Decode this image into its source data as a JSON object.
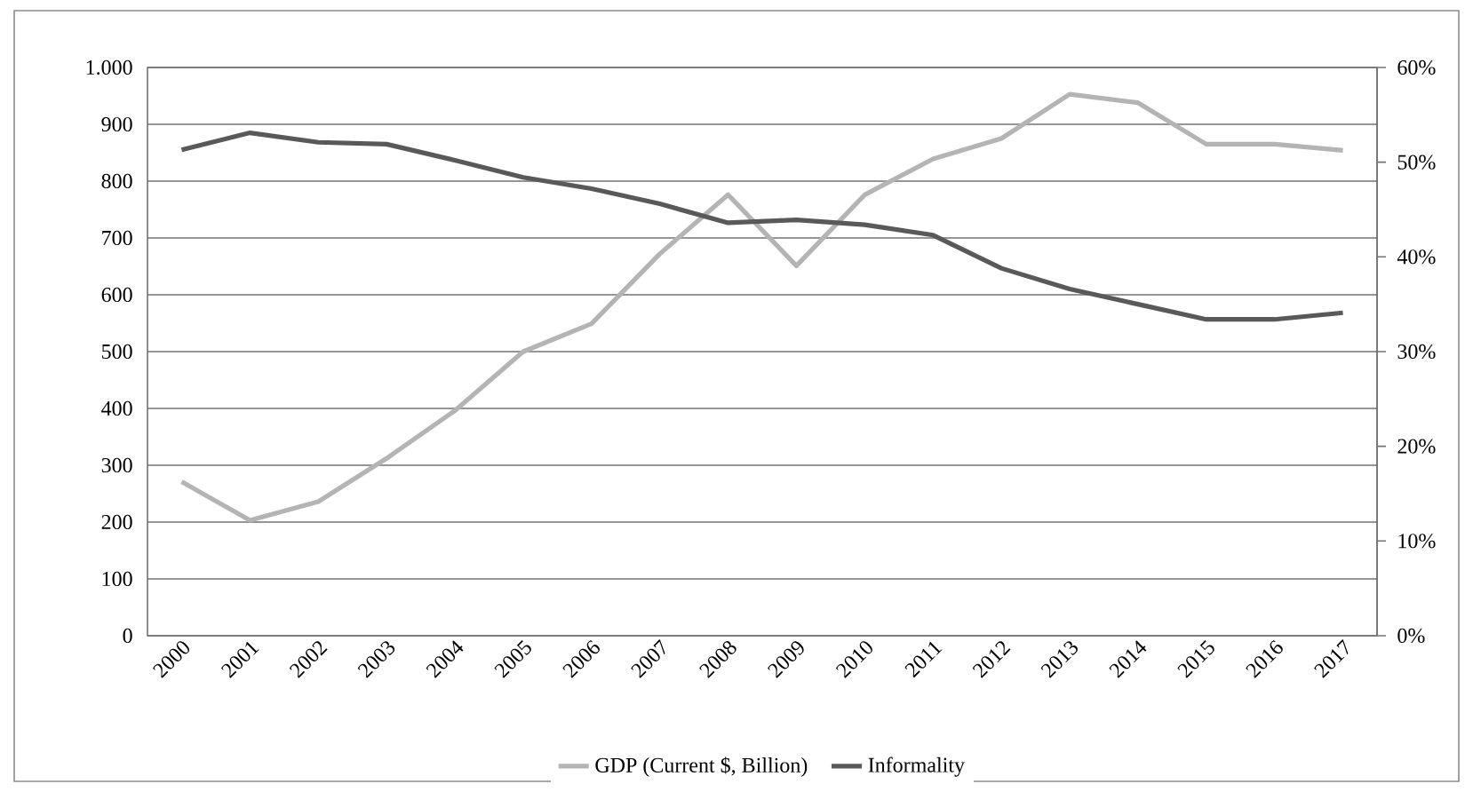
{
  "chart_data": {
    "type": "line",
    "categories": [
      "2000",
      "2001",
      "2002",
      "2003",
      "2004",
      "2005",
      "2006",
      "2007",
      "2008",
      "2009",
      "2010",
      "2011",
      "2012",
      "2013",
      "2014",
      "2015",
      "2016",
      "2017"
    ],
    "series": [
      {
        "name": "GDP (Current $, Billion)",
        "color": "#b4b4b4",
        "values": [
          271,
          203,
          236,
          312,
          396,
          500,
          549,
          672,
          776,
          651,
          776,
          839,
          875,
          953,
          938,
          865,
          865,
          854
        ]
      },
      {
        "name": "Informality",
        "color": "#595959",
        "axis": "y2",
        "values": [
          51.3,
          53.1,
          52.1,
          51.9,
          50.2,
          48.4,
          47.2,
          45.6,
          43.6,
          43.9,
          43.4,
          42.3,
          38.8,
          36.6,
          35.0,
          33.4,
          33.4,
          34.1
        ]
      }
    ],
    "ylim": [
      0,
      1000
    ],
    "yticks": [
      0,
      100,
      200,
      300,
      400,
      500,
      600,
      700,
      800,
      900,
      {
        "value": 1000,
        "label": "1.000"
      }
    ],
    "y2lim": [
      0,
      60
    ],
    "y2ticks": [
      {
        "value": 0,
        "label": "0%"
      },
      {
        "value": 10,
        "label": "10%"
      },
      {
        "value": 20,
        "label": "20%"
      },
      {
        "value": 30,
        "label": "30%"
      },
      {
        "value": 40,
        "label": "40%"
      },
      {
        "value": 50,
        "label": "50%"
      },
      {
        "value": 60,
        "label": "60%"
      }
    ],
    "grid": "y",
    "legend": "bottom",
    "line_style": "solid",
    "marker": "none"
  }
}
